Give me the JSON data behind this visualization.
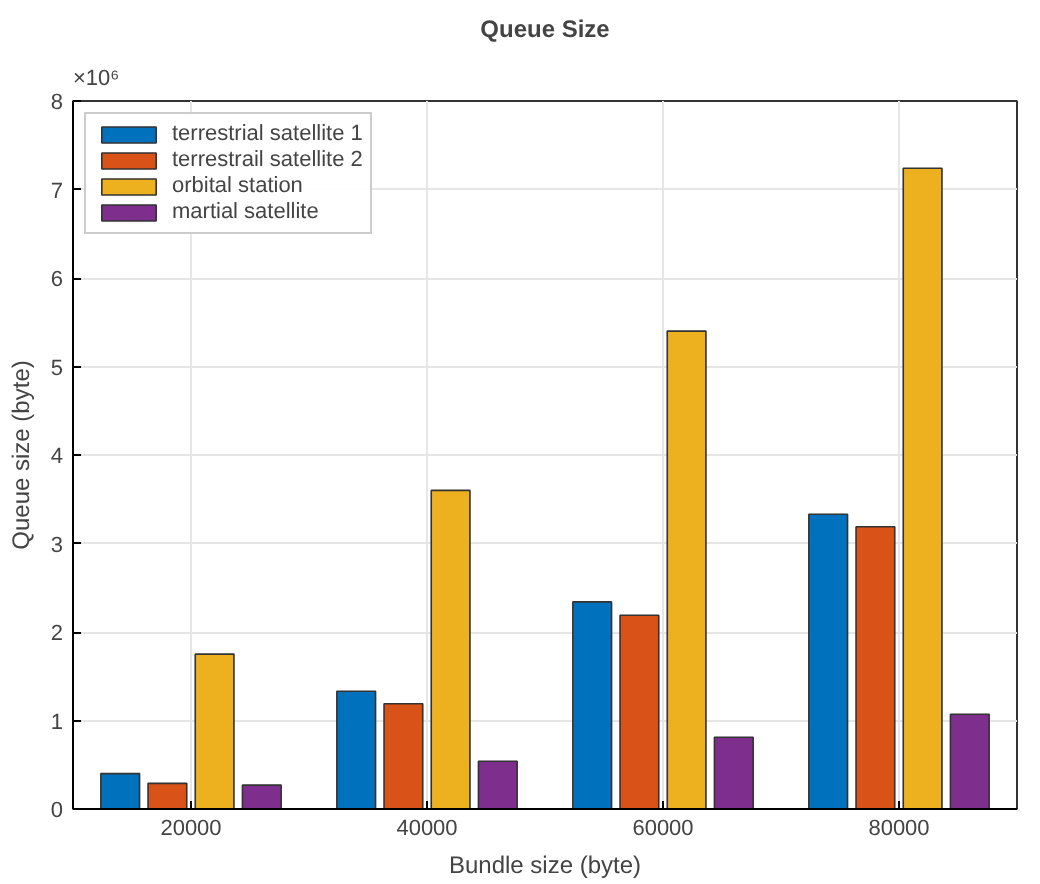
{
  "chart_data": {
    "type": "bar",
    "title": "Queue Size",
    "xlabel": "Bundle size (byte)",
    "ylabel": "Queue size (byte)",
    "annotations": [
      "×10⁶"
    ],
    "categories": [
      "20000",
      "40000",
      "60000",
      "80000"
    ],
    "series": [
      {
        "name": "terrestrial satellite 1",
        "color": "#0072bd",
        "values": [
          0.4,
          1.33,
          2.34,
          3.33
        ]
      },
      {
        "name": "terrestrail satellite 2",
        "color": "#d95319",
        "values": [
          0.29,
          1.19,
          2.19,
          3.19
        ]
      },
      {
        "name": "orbital station",
        "color": "#edb120",
        "values": [
          1.75,
          3.6,
          5.4,
          7.24
        ]
      },
      {
        "name": "martial satellite",
        "color": "#7e2f8e",
        "values": [
          0.27,
          0.54,
          0.81,
          1.07
        ]
      }
    ],
    "ylim": [
      0,
      8
    ],
    "yticks": [
      0,
      1,
      2,
      3,
      4,
      5,
      6,
      7,
      8
    ],
    "grid": true,
    "legend": "top left"
  }
}
